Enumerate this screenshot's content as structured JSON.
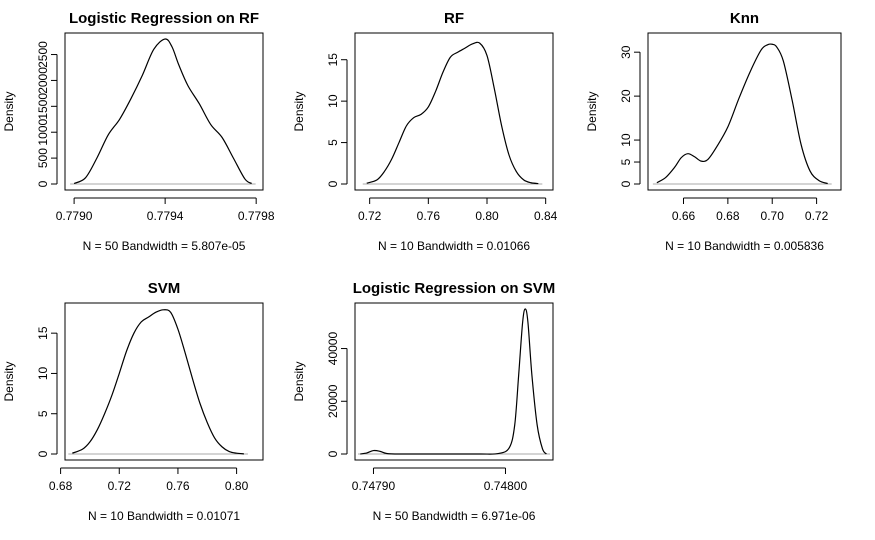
{
  "chart_data": [
    {
      "type": "line",
      "title": "Logistic Regression on RF",
      "xlabel": "N = 50   Bandwidth = 5.807e-05",
      "ylabel": "Density",
      "xlim": [
        0.77896,
        0.77983
      ],
      "ylim": [
        0,
        2800
      ],
      "xticks": [
        0.779,
        0.7794,
        0.7798
      ],
      "xtick_labels": [
        "0.7790",
        "0.7794",
        "0.7798"
      ],
      "yticks": [
        0,
        500,
        1000,
        1500,
        2000,
        2500
      ],
      "ytick_labels": [
        "0",
        "500",
        "1000",
        "1500",
        "2000",
        "2500"
      ],
      "grid": false,
      "series": [
        {
          "x": [
            0.779,
            0.77905,
            0.7791,
            0.77915,
            0.7792,
            0.77925,
            0.7793,
            0.77935,
            0.7794,
            0.77943,
            0.77946,
            0.7795,
            0.77955,
            0.7796,
            0.77965,
            0.7797,
            0.77975,
            0.77978
          ],
          "y": [
            10,
            120,
            500,
            950,
            1250,
            1650,
            2100,
            2600,
            2800,
            2650,
            2300,
            1900,
            1550,
            1150,
            900,
            500,
            100,
            10
          ]
        }
      ]
    },
    {
      "type": "line",
      "title": "RF",
      "xlabel": "N = 10   Bandwidth = 0.01066",
      "ylabel": "Density",
      "xlim": [
        0.71,
        0.845
      ],
      "ylim": [
        0,
        17.5
      ],
      "xticks": [
        0.72,
        0.76,
        0.8,
        0.84
      ],
      "xtick_labels": [
        "0.72",
        "0.76",
        "0.80",
        "0.84"
      ],
      "yticks": [
        0,
        5,
        10,
        15
      ],
      "ytick_labels": [
        "0",
        "5",
        "10",
        "15"
      ],
      "grid": false,
      "series": [
        {
          "x": [
            0.718,
            0.725,
            0.73,
            0.735,
            0.74,
            0.745,
            0.75,
            0.755,
            0.76,
            0.765,
            0.77,
            0.775,
            0.78,
            0.785,
            0.79,
            0.795,
            0.8,
            0.805,
            0.81,
            0.815,
            0.82,
            0.825,
            0.83,
            0.835
          ],
          "y": [
            0.1,
            0.5,
            1.5,
            3.0,
            5.0,
            7.0,
            8.0,
            8.4,
            9.3,
            11.2,
            13.5,
            15.3,
            15.9,
            16.4,
            16.9,
            17.0,
            15.5,
            11.5,
            7.0,
            3.5,
            1.5,
            0.5,
            0.15,
            0.05
          ]
        }
      ]
    },
    {
      "type": "line",
      "title": "Knn",
      "xlabel": "N = 10   Bandwidth = 0.005836",
      "ylabel": "Density",
      "xlim": [
        0.644,
        0.731
      ],
      "ylim": [
        0,
        33
      ],
      "xticks": [
        0.66,
        0.68,
        0.7,
        0.72
      ],
      "xtick_labels": [
        "0.66",
        "0.68",
        "0.70",
        "0.72"
      ],
      "yticks": [
        0,
        5,
        10,
        20,
        30
      ],
      "ytick_labels": [
        "0",
        "5",
        "10",
        "20",
        "30"
      ],
      "grid": false,
      "series": [
        {
          "x": [
            0.648,
            0.652,
            0.656,
            0.659,
            0.662,
            0.665,
            0.668,
            0.671,
            0.675,
            0.68,
            0.685,
            0.69,
            0.695,
            0.698,
            0.7,
            0.702,
            0.705,
            0.709,
            0.713,
            0.717,
            0.721,
            0.725
          ],
          "y": [
            0.3,
            1.5,
            3.8,
            6.0,
            6.9,
            6.2,
            5.2,
            5.6,
            8.5,
            13.0,
            19.5,
            25.5,
            30.5,
            31.7,
            31.8,
            31.2,
            28.0,
            19.0,
            9.0,
            3.0,
            0.8,
            0.1
          ]
        }
      ]
    },
    {
      "type": "line",
      "title": "SVM",
      "xlabel": "N = 10   Bandwidth = 0.01071",
      "ylabel": "Density",
      "xlim": [
        0.683,
        0.818
      ],
      "ylim": [
        0,
        18
      ],
      "xticks": [
        0.68,
        0.72,
        0.76,
        0.8
      ],
      "xtick_labels": [
        "0.68",
        "0.72",
        "0.76",
        "0.80"
      ],
      "yticks": [
        0,
        5,
        10,
        15
      ],
      "ytick_labels": [
        "0",
        "5",
        "10",
        "15"
      ],
      "grid": false,
      "series": [
        {
          "x": [
            0.688,
            0.695,
            0.7,
            0.705,
            0.71,
            0.715,
            0.72,
            0.725,
            0.73,
            0.735,
            0.74,
            0.745,
            0.75,
            0.755,
            0.76,
            0.765,
            0.77,
            0.775,
            0.78,
            0.785,
            0.79,
            0.795,
            0.8,
            0.805
          ],
          "y": [
            0.1,
            0.6,
            1.5,
            3.0,
            5.0,
            7.3,
            10.0,
            12.8,
            15.0,
            16.4,
            17.0,
            17.6,
            17.9,
            17.6,
            15.5,
            12.5,
            9.3,
            6.3,
            3.9,
            2.0,
            0.9,
            0.3,
            0.1,
            0.02
          ]
        }
      ]
    },
    {
      "type": "line",
      "title": "Logistic Regression on SVM",
      "xlabel": "N = 50   Bandwidth = 6.971e-06",
      "ylabel": "Density",
      "xlim": [
        0.747886,
        0.748036
      ],
      "ylim": [
        0,
        55000
      ],
      "xticks": [
        0.7479,
        0.748
      ],
      "xtick_labels": [
        "0.74790",
        "0.74800"
      ],
      "yticks": [
        0,
        20000,
        40000
      ],
      "ytick_labels": [
        "0",
        "20000",
        "40000"
      ],
      "grid": false,
      "series": [
        {
          "x": [
            0.74789,
            0.747895,
            0.7479,
            0.747905,
            0.74791,
            0.74792,
            0.74795,
            0.74798,
            0.747995,
            0.748003,
            0.748007,
            0.74801,
            0.748013,
            0.748015,
            0.748017,
            0.74802,
            0.748024,
            0.748028,
            0.748031
          ],
          "y": [
            0,
            400,
            1300,
            1000,
            200,
            0,
            0,
            0,
            200,
            2500,
            11000,
            30000,
            50000,
            55000,
            50000,
            30000,
            11000,
            2000,
            0
          ]
        }
      ]
    }
  ]
}
